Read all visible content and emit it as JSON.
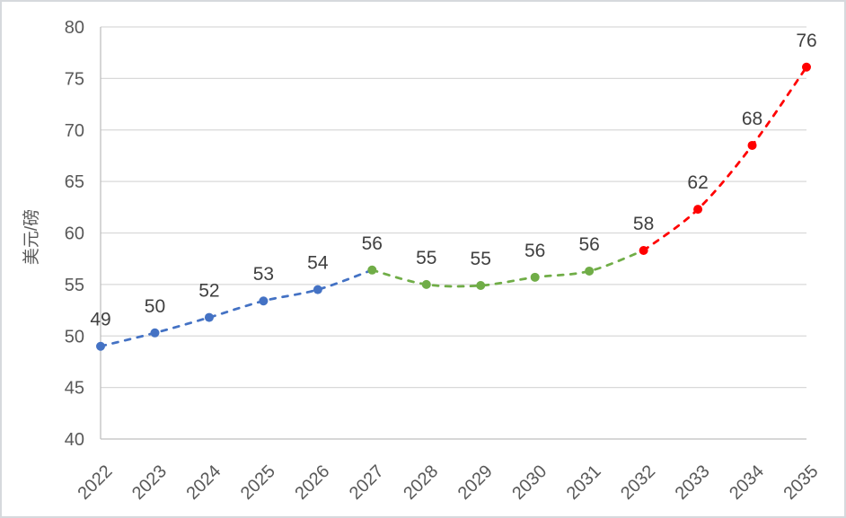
{
  "chart_data": {
    "type": "line",
    "title": "",
    "xlabel": "",
    "ylabel": "美元/磅",
    "ylim": [
      40,
      80
    ],
    "ytick_step": 5,
    "grid": true,
    "legend": "none",
    "line_style": "dashed",
    "smooth": true,
    "categories": [
      "2022",
      "2023",
      "2024",
      "2025",
      "2026",
      "2027",
      "2028",
      "2029",
      "2030",
      "2031",
      "2032",
      "2033",
      "2034",
      "2035"
    ],
    "values": [
      49.0,
      50.3,
      51.8,
      53.4,
      54.5,
      56.4,
      55.0,
      54.9,
      55.7,
      56.3,
      58.3,
      62.3,
      68.5,
      76.1
    ],
    "point_labels": [
      "49",
      "50",
      "52",
      "53",
      "54",
      "56",
      "55",
      "55",
      "56",
      "56",
      "58",
      "62",
      "68",
      "76"
    ],
    "marker_segment": [
      0,
      0,
      0,
      0,
      0,
      1,
      1,
      1,
      1,
      1,
      2,
      2,
      2,
      2
    ],
    "segments": [
      {
        "name": "segment-blue",
        "color": "#4472C4",
        "from": 0,
        "to": 5
      },
      {
        "name": "segment-green",
        "color": "#70AD47",
        "from": 5,
        "to": 10
      },
      {
        "name": "segment-red",
        "color": "#FF0000",
        "from": 10,
        "to": 13
      }
    ],
    "colors": {
      "grid": "#D9D9D9",
      "axis": "#BFBFBF",
      "tick_label": "#595959",
      "data_label": "#404040",
      "background": "#FFFFFF",
      "frame_border": "#D6D9DD"
    }
  }
}
